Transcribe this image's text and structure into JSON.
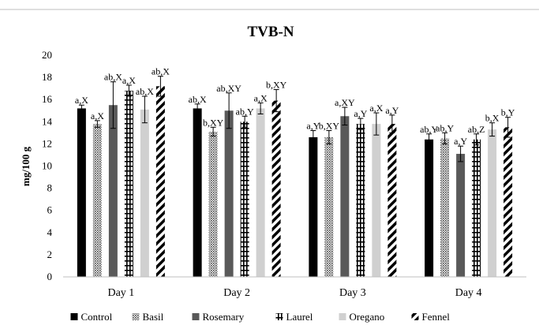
{
  "chart_data": {
    "type": "bar",
    "title": "TVB-N",
    "ylabel": "mg/100 g",
    "xlabel": "",
    "ylim": [
      0,
      20
    ],
    "yticks": [
      0,
      2,
      4,
      6,
      8,
      10,
      12,
      14,
      16,
      18,
      20
    ],
    "grid": false,
    "legend_position": "bottom",
    "categories": [
      "Day 1",
      "Day 2",
      "Day 3",
      "Day 4"
    ],
    "series": [
      {
        "name": "Control",
        "pattern": "solid-black",
        "color": "#000000",
        "values": [
          15.2,
          15.2,
          12.6,
          12.4
        ],
        "errors": [
          0.3,
          0.4,
          0.6,
          0.5
        ],
        "labels": [
          "a,X",
          "ab,X",
          "a,Y",
          "ab,Y"
        ]
      },
      {
        "name": "Basil",
        "pattern": "dots",
        "color": "#555555",
        "values": [
          13.8,
          13.1,
          12.6,
          12.5
        ],
        "errors": [
          0.3,
          0.4,
          0.6,
          0.5
        ],
        "labels": [
          "a,X",
          "b,XY",
          "b,XY",
          "ab,Y"
        ]
      },
      {
        "name": "Rosemary",
        "pattern": "solid-dark-gray",
        "color": "#555555",
        "values": [
          15.5,
          15.0,
          14.5,
          11.1
        ],
        "errors": [
          2.1,
          1.6,
          0.8,
          0.7
        ],
        "labels": [
          "ab,X",
          "ab,XY",
          "a,XY",
          "a,Y"
        ]
      },
      {
        "name": "Laurel",
        "pattern": "grid",
        "color": "#000000",
        "values": [
          16.8,
          14.0,
          13.8,
          12.4
        ],
        "errors": [
          0.5,
          0.5,
          0.5,
          0.5
        ],
        "labels": [
          "a,X",
          "ab,Y",
          "a,Y",
          "ab,Z"
        ]
      },
      {
        "name": "Oregano",
        "pattern": "solid-light-gray",
        "color": "#cccccc",
        "values": [
          15.1,
          15.2,
          13.8,
          13.3
        ],
        "errors": [
          1.2,
          0.5,
          1.0,
          0.6
        ],
        "labels": [
          "ab,X",
          "a,X",
          "a,X",
          "b,X"
        ]
      },
      {
        "name": "Fennel",
        "pattern": "diagonal-stripes",
        "color": "#000000",
        "values": [
          17.2,
          15.9,
          13.8,
          13.5
        ],
        "errors": [
          0.9,
          1.0,
          0.8,
          0.9
        ],
        "labels": [
          "ab,X",
          "b,XY",
          "a,Y",
          "b,Y"
        ]
      }
    ]
  }
}
